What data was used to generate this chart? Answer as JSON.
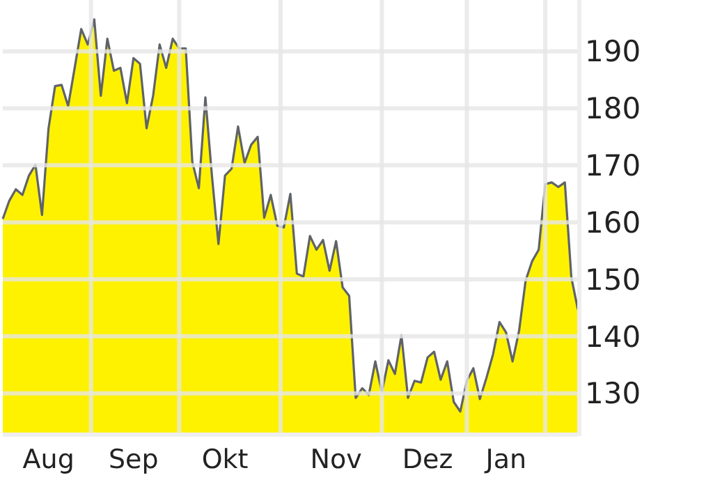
{
  "chart_data": {
    "type": "area",
    "categories": [
      null,
      null,
      null,
      null,
      null,
      null,
      null,
      "Aug",
      null,
      null,
      null,
      null,
      null,
      null,
      null,
      null,
      null,
      null,
      null,
      null,
      "Sep",
      null,
      null,
      null,
      null,
      null,
      null,
      null,
      null,
      null,
      null,
      null,
      null,
      null,
      "Okt",
      null,
      null,
      null,
      null,
      null,
      null,
      null,
      null,
      null,
      null,
      null,
      null,
      null,
      null,
      null,
      null,
      "Nov",
      null,
      null,
      null,
      null,
      null,
      null,
      null,
      null,
      null,
      null,
      null,
      null,
      null,
      "Dez",
      null,
      null,
      null,
      null,
      null,
      null,
      null,
      null,
      null,
      null,
      null,
      "Jan",
      null,
      null,
      null,
      null,
      null,
      null,
      null,
      null,
      null,
      null,
      null
    ],
    "series": [
      {
        "color": "#fff200",
        "values": [
          160.6,
          163.8,
          165.8,
          164.8,
          168.2,
          170.1,
          161.3,
          176.5,
          183.9,
          184.1,
          180.4,
          187.1,
          193.9,
          191.2,
          195.6,
          182.2,
          192.2,
          186.6,
          187.1,
          180.9,
          188.8,
          187.8,
          176.5,
          182.2,
          191.2,
          187.1,
          192.2,
          190.5,
          190.5,
          170.6,
          166.0,
          181.9,
          168.2,
          156.2,
          168.2,
          169.4,
          176.8,
          170.4,
          173.6,
          175.0,
          160.8,
          164.8,
          159.4,
          159.1,
          165.0,
          151.0,
          150.5,
          157.6,
          155.2,
          156.9,
          151.5,
          156.7,
          148.6,
          147.1,
          129.2,
          130.9,
          129.7,
          135.6,
          130.2,
          135.8,
          133.4,
          140.2,
          129.2,
          132.2,
          131.9,
          136.3,
          137.3,
          132.4,
          135.6,
          128.5,
          126.8,
          132.2,
          134.4,
          129.0,
          132.7,
          136.8,
          142.5,
          140.7,
          135.6,
          141.0,
          149.8,
          153.2,
          155.2,
          166.7,
          167.0,
          166.2,
          167.0,
          150.3,
          144.7
        ]
      }
    ],
    "ylim": [
      123,
      199
    ],
    "yticks": [
      130,
      140,
      150,
      160,
      170,
      180,
      190
    ],
    "grid": true
  }
}
